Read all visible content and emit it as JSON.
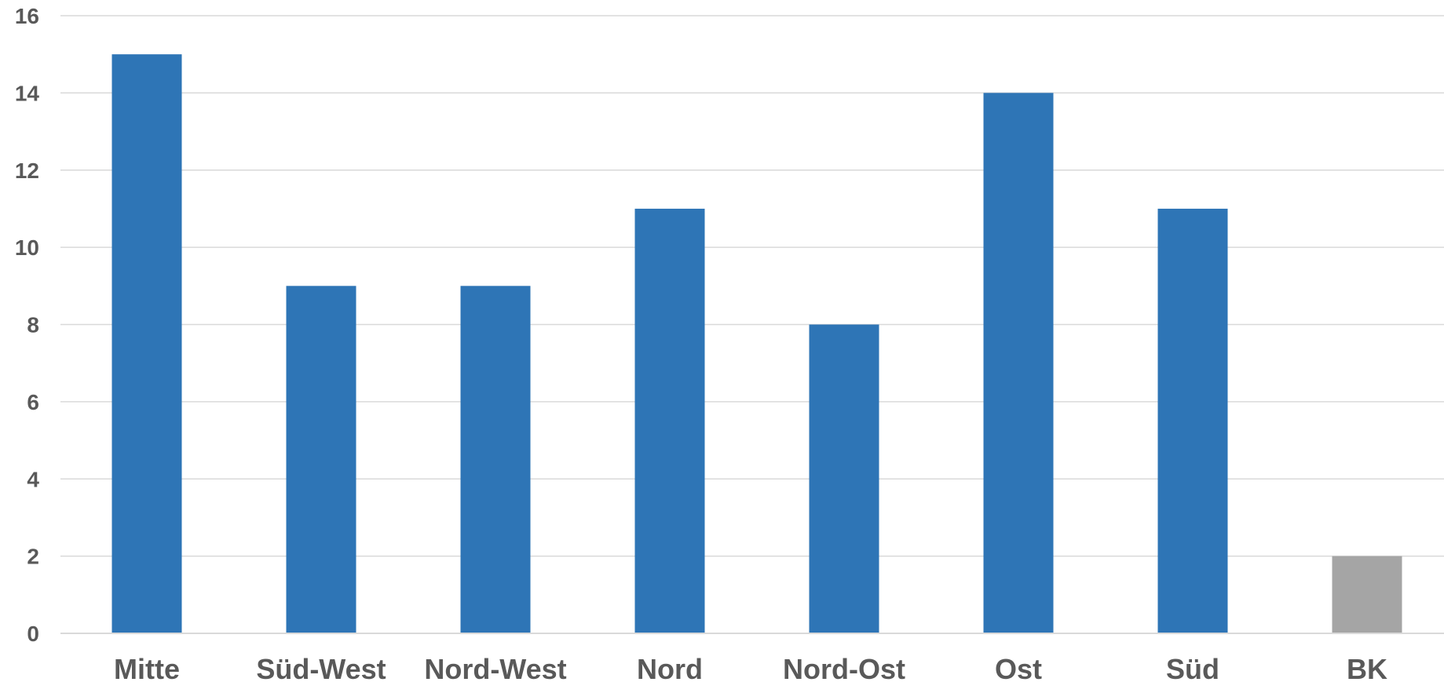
{
  "chart_data": {
    "type": "bar",
    "categories": [
      "Mitte",
      "Süd-West",
      "Nord-West",
      "Nord",
      "Nord-Ost",
      "Ost",
      "Süd",
      "BK"
    ],
    "values": [
      15,
      9,
      9,
      11,
      8,
      14,
      11,
      2
    ],
    "bar_colors": [
      "#2E75B6",
      "#2E75B6",
      "#2E75B6",
      "#2E75B6",
      "#2E75B6",
      "#2E75B6",
      "#2E75B6",
      "#A5A5A5"
    ],
    "ylim": [
      0,
      16
    ],
    "yticks": [
      "0",
      "2",
      "4",
      "6",
      "8",
      "10",
      "12",
      "14",
      "16"
    ],
    "title": "",
    "xlabel": "",
    "ylabel": "",
    "grid": true,
    "legend": "none",
    "colors": {
      "grid": "#D9D9D9",
      "text": "#595959"
    }
  }
}
